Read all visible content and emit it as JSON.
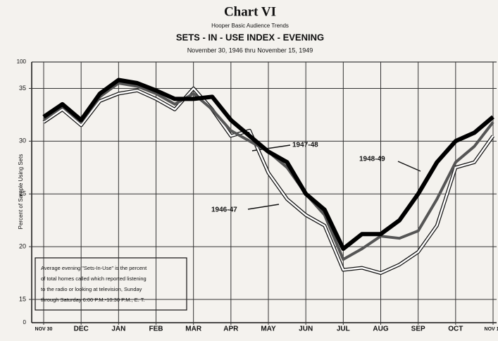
{
  "chart_data": {
    "type": "line",
    "title": "Chart VI",
    "subtitle": "Hooper Basic Audience Trends",
    "heading": "SETS - IN - USE INDEX - EVENING",
    "period": "November 30, 1946 thru November 15, 1949",
    "y_label": "Percent of Sample Using Sets",
    "categories": [
      "NOV 30",
      null,
      "DEC",
      null,
      "JAN",
      null,
      "FEB",
      null,
      "MAR",
      null,
      "APR",
      null,
      "MAY",
      null,
      "JUN",
      null,
      "JUL",
      null,
      "AUG",
      null,
      "SEP",
      null,
      "OCT",
      null,
      "NOV 15"
    ],
    "ylim": [
      12.8,
      37.5
    ],
    "yticks": [
      15,
      20,
      25,
      30,
      35
    ],
    "axis_end_labels": {
      "top": "100",
      "bottom": "0"
    },
    "grid": true,
    "series": [
      {
        "name": "1946-47",
        "color": "#ffffff",
        "outline": true,
        "values": [
          31.8,
          33,
          31.5,
          33.8,
          34.5,
          34.8,
          34,
          33,
          35,
          33,
          30.5,
          31,
          27,
          24.5,
          23,
          22,
          17.8,
          18,
          17.5,
          18.3,
          19.5,
          22,
          27.5,
          28,
          30.5
        ]
      },
      {
        "name": "1947-48",
        "color": "#555555",
        "outline": false,
        "values": [
          32,
          33.3,
          31.8,
          34.2,
          35.5,
          35.2,
          34.5,
          33.5,
          34.5,
          33,
          31,
          30,
          29,
          27.5,
          25,
          23,
          18.8,
          19.8,
          21,
          20.8,
          21.5,
          24.5,
          28,
          29.5,
          31.8
        ]
      },
      {
        "name": "1948-49",
        "color": "#000000",
        "outline": false,
        "values": [
          32.3,
          33.5,
          32,
          34.5,
          35.8,
          35.5,
          34.8,
          34,
          34,
          34.2,
          32,
          30.5,
          29,
          28,
          25,
          23.5,
          19.8,
          21.2,
          21.2,
          22.5,
          25,
          28,
          30,
          30.8,
          32.3
        ]
      }
    ],
    "note": [
      "Average evening \"Sets-In-Use\" is the percent",
      "of total homes called which reported listening",
      "to the radio or looking at television, Sunday",
      "through Saturday 6:00 P.M.-10:30 P.M., E. T."
    ]
  }
}
